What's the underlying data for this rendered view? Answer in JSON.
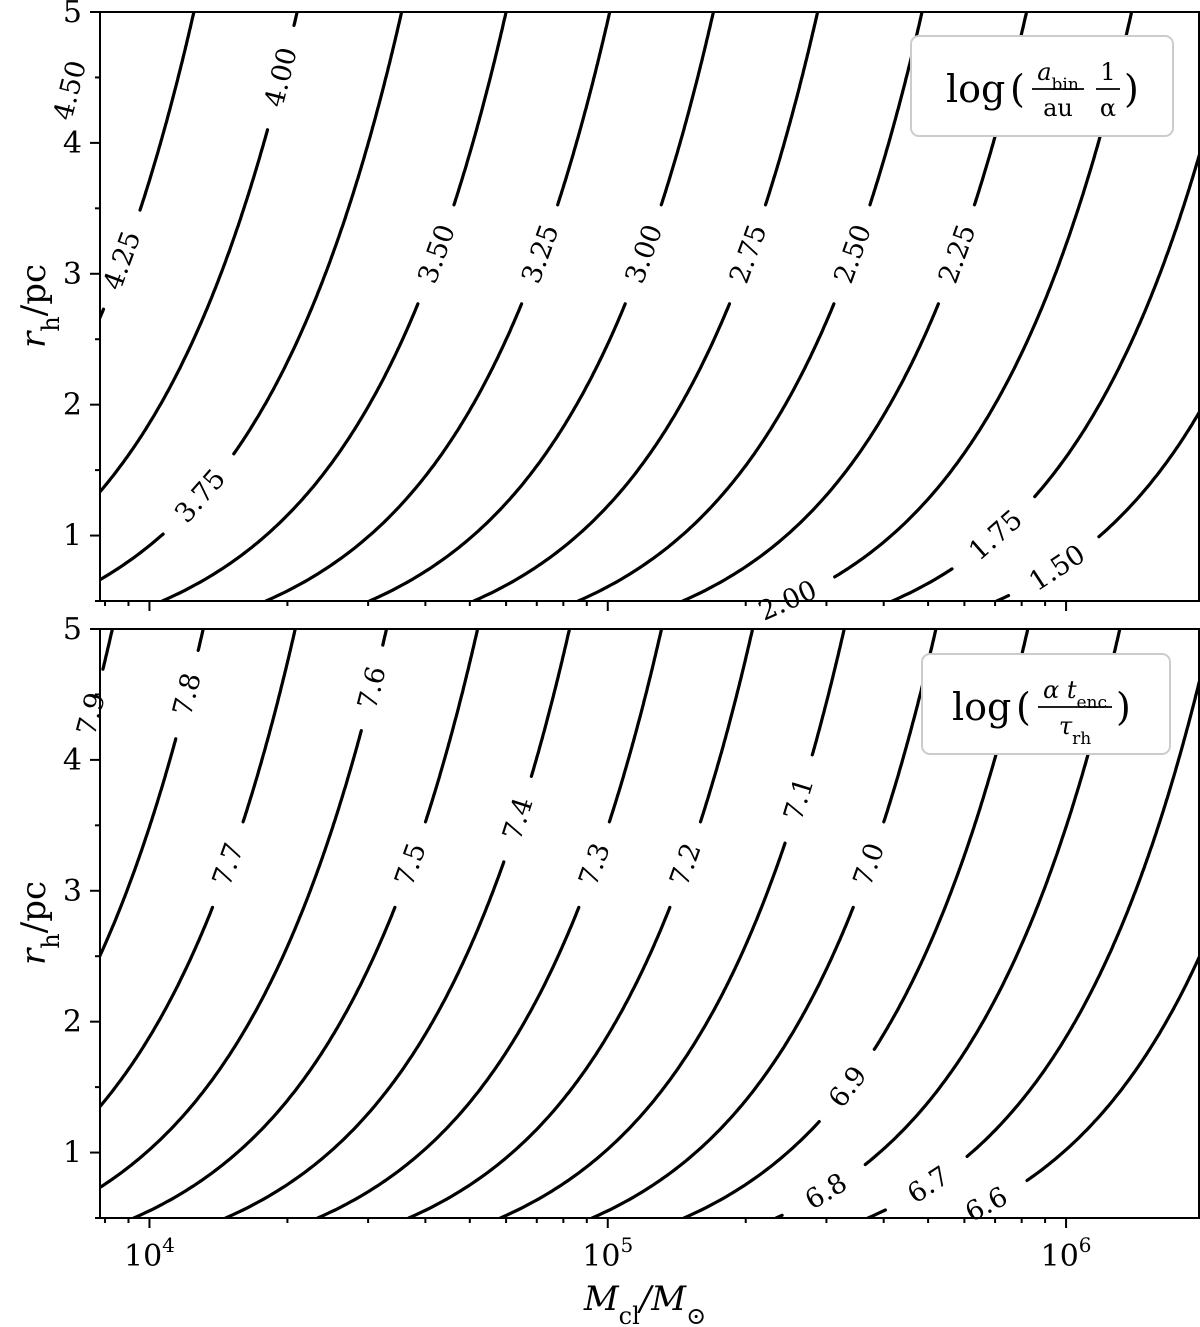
{
  "chart_data": [
    {
      "type": "contour",
      "panel": "top",
      "legend": {
        "prefix": "log",
        "numerator": "a",
        "numerator_sub": "bin",
        "denominator": "au",
        "factor_num": "1",
        "factor_den": "α"
      },
      "xscale": "log",
      "xlim": [
        7800,
        1950000
      ],
      "ylim": [
        0.5,
        5
      ],
      "x_ticks": [
        "10",
        "10",
        "10"
      ],
      "x_tick_exponents": [
        "4",
        "5",
        "6"
      ],
      "x_tick_values": [
        10000,
        100000,
        1000000
      ],
      "y_ticks": [
        "1",
        "2",
        "3",
        "4",
        "5"
      ],
      "y_tick_values": [
        1,
        2,
        3,
        4,
        5
      ],
      "ylabel": {
        "main": "r",
        "sub": "h",
        "unit": "/pc"
      },
      "xlabel": "",
      "levels": [
        "4.50",
        "4.25",
        "4.00",
        "3.75",
        "3.50",
        "3.25",
        "3.00",
        "2.75",
        "2.50",
        "2.25",
        "2.00",
        "1.75",
        "1.50"
      ],
      "level_values": [
        4.5,
        4.25,
        4.0,
        3.75,
        3.5,
        3.25,
        3.0,
        2.75,
        2.5,
        2.25,
        2.0,
        1.75,
        1.5
      ],
      "level_x_at_r5": [
        7400,
        12500,
        21000,
        35500,
        60000,
        101000,
        170000,
        287000,
        485000,
        820000,
        1390000,
        2350000,
        3970000
      ],
      "label_r": [
        4.4,
        3.1,
        4.5,
        1.3,
        3.15,
        3.15,
        3.15,
        3.15,
        3.15,
        3.15,
        0.5,
        1.0,
        0.75
      ],
      "grid": false
    },
    {
      "type": "contour",
      "panel": "bottom",
      "legend": {
        "prefix": "log",
        "numerator": "α t",
        "numerator_sub": "enc",
        "denominator": "τ",
        "denominator_sub": "rh"
      },
      "xscale": "log",
      "xlim": [
        7800,
        1950000
      ],
      "ylim": [
        0.5,
        5
      ],
      "x_ticks": [
        "10",
        "10",
        "10"
      ],
      "x_tick_exponents": [
        "4",
        "5",
        "6"
      ],
      "x_tick_values": [
        10000,
        100000,
        1000000
      ],
      "y_ticks": [
        "1",
        "2",
        "3",
        "4",
        "5"
      ],
      "y_tick_values": [
        1,
        2,
        3,
        4,
        5
      ],
      "ylabel": {
        "main": "r",
        "sub": "h",
        "unit": "/pc"
      },
      "xlabel": {
        "main": "M",
        "sub": "cl",
        "unit": "/M",
        "unit_sub": "⊙"
      },
      "levels": [
        "7.9",
        "7.8",
        "7.7",
        "7.6",
        "7.5",
        "7.4",
        "7.3",
        "7.2",
        "7.1",
        "7.0",
        "6.9",
        "6.8",
        "6.7",
        "6.6"
      ],
      "level_values": [
        7.9,
        7.8,
        7.7,
        7.6,
        7.5,
        7.4,
        7.3,
        7.2,
        7.1,
        7.0,
        6.9,
        6.8,
        6.7,
        6.6
      ],
      "level_x_at_r5": [
        8300,
        13100,
        20800,
        32900,
        52000,
        82500,
        131000,
        207000,
        328000,
        520000,
        825000,
        1310000,
        2080000,
        3290000
      ],
      "label_r": [
        4.35,
        4.5,
        3.2,
        4.55,
        3.2,
        3.55,
        3.2,
        3.2,
        3.7,
        3.2,
        1.5,
        0.7,
        0.75,
        0.6
      ],
      "grid": false
    }
  ]
}
